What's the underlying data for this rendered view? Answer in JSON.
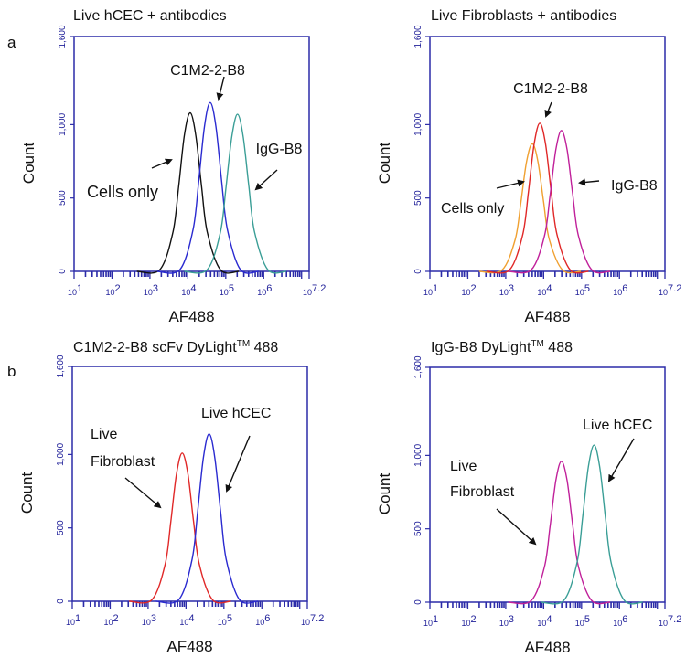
{
  "panel_letters": [
    "a",
    "b"
  ],
  "colors": {
    "axis": "#2b2ba8",
    "black": "#111111",
    "blue": "#2a2ad0",
    "teal": "#3a9e96",
    "orange": "#f0a030",
    "red": "#e02828",
    "magenta": "#c0209a"
  },
  "chart_data": [
    {
      "type": "line",
      "title": "Live hCEC + antibodies",
      "xlabel": "AF488",
      "ylabel": "Count",
      "xscale": "log",
      "xlim": [
        10,
        15848932
      ],
      "ylim": [
        0,
        1600
      ],
      "xticks": [
        {
          "base": "10",
          "exp": "1"
        },
        {
          "base": "10",
          "exp": "2"
        },
        {
          "base": "10",
          "exp": "3"
        },
        {
          "base": "10",
          "exp": "4"
        },
        {
          "base": "10",
          "exp": "5"
        },
        {
          "base": "10",
          "exp": "6"
        },
        {
          "base": "10",
          "exp": "7.2"
        }
      ],
      "yticks": [
        "0",
        "500",
        "1,000",
        "1,600"
      ],
      "grid": false,
      "annotations": [
        "C1M2-2-B8",
        "IgG-B8",
        "Cells only"
      ],
      "series": [
        {
          "name": "Cells only",
          "color": "#111111",
          "x": [
            1820,
            4070,
            5750,
            8130,
            11500,
            16200,
            22900,
            32400,
            72400
          ],
          "y": [
            11,
            270,
            583,
            929,
            1080,
            929,
            583,
            270,
            11
          ]
        },
        {
          "name": "C1M2-2-B8",
          "color": "#2a2ad0",
          "x": [
            6170,
            13800,
            19500,
            27500,
            38900,
            55000,
            77600,
            110000,
            245000
          ],
          "y": [
            12,
            288,
            621,
            989,
            1150,
            989,
            621,
            288,
            12
          ]
        },
        {
          "name": "IgG-B8",
          "color": "#3a9e96",
          "x": [
            32400,
            72400,
            102000,
            145000,
            204000,
            288000,
            407000,
            575000,
            1290000
          ],
          "y": [
            11,
            268,
            578,
            920,
            1070,
            920,
            578,
            268,
            11
          ]
        }
      ]
    },
    {
      "type": "line",
      "title": "Live Fibroblasts + antibodies",
      "xlabel": "AF488",
      "ylabel": "Count",
      "xscale": "log",
      "xlim": [
        10,
        15848932
      ],
      "ylim": [
        0,
        1600
      ],
      "xticks": [
        {
          "base": "10",
          "exp": "1"
        },
        {
          "base": "10",
          "exp": "2"
        },
        {
          "base": "10",
          "exp": "3"
        },
        {
          "base": "10",
          "exp": "4"
        },
        {
          "base": "10",
          "exp": "5"
        },
        {
          "base": "10",
          "exp": "6"
        },
        {
          "base": "10",
          "exp": "7.2"
        }
      ],
      "yticks": [
        "0",
        "500",
        "1,000",
        "1,600"
      ],
      "grid": false,
      "annotations": [
        "C1M2-2-B8",
        "IgG-B8",
        "Cells only"
      ],
      "series": [
        {
          "name": "Cells only",
          "color": "#f0a030",
          "x": [
            794,
            1780,
            2510,
            3550,
            5010,
            7080,
            10000,
            14100,
            31600
          ],
          "y": [
            9,
            218,
            470,
            748,
            870,
            748,
            470,
            218,
            9
          ]
        },
        {
          "name": "C1M2-2-B8",
          "color": "#e02828",
          "x": [
            1260,
            2820,
            3980,
            5620,
            7940,
            11200,
            15800,
            22400,
            50100
          ],
          "y": [
            10,
            253,
            545,
            869,
            1010,
            869,
            545,
            253,
            10
          ]
        },
        {
          "name": "IgG-B8",
          "color": "#c0209a",
          "x": [
            4680,
            10500,
            14800,
            20900,
            29500,
            41700,
            58900,
            83200,
            186000
          ],
          "y": [
            10,
            240,
            518,
            826,
            960,
            826,
            518,
            240,
            10
          ]
        }
      ]
    },
    {
      "type": "line",
      "title": "C1M2-2-B8 scFv DyLight",
      "title_sup": "TM",
      "title_suffix": " 488",
      "xlabel": "AF488",
      "ylabel": "Count",
      "xscale": "log",
      "xlim": [
        10,
        15848932
      ],
      "ylim": [
        0,
        1600
      ],
      "xticks": [
        {
          "base": "10",
          "exp": "1"
        },
        {
          "base": "10",
          "exp": "2"
        },
        {
          "base": "10",
          "exp": "3"
        },
        {
          "base": "10",
          "exp": "4"
        },
        {
          "base": "10",
          "exp": "5"
        },
        {
          "base": "10",
          "exp": "6"
        },
        {
          "base": "10",
          "exp": "7.2"
        }
      ],
      "yticks": [
        "0",
        "500",
        "1,000",
        "1,600"
      ],
      "grid": false,
      "annotations": [
        "Live hCEC",
        "Live",
        "Fibroblast"
      ],
      "series": [
        {
          "name": "Live Fibroblast",
          "color": "#e02828",
          "x": [
            1260,
            2820,
            3980,
            5620,
            7940,
            11200,
            15800,
            22400,
            50100
          ],
          "y": [
            10,
            253,
            545,
            869,
            1010,
            869,
            545,
            253,
            10
          ]
        },
        {
          "name": "Live hCEC",
          "color": "#2a2ad0",
          "x": [
            6460,
            14500,
            20400,
            28800,
            40700,
            57500,
            81300,
            115000,
            257000
          ],
          "y": [
            11,
            285,
            616,
            980,
            1140,
            980,
            616,
            285,
            11
          ]
        }
      ]
    },
    {
      "type": "line",
      "title": "IgG-B8 DyLight",
      "title_sup": "TM",
      "title_suffix": " 488",
      "xlabel": "AF488",
      "ylabel": "Count",
      "xscale": "log",
      "xlim": [
        10,
        15848932
      ],
      "ylim": [
        0,
        1600
      ],
      "xticks": [
        {
          "base": "10",
          "exp": "1"
        },
        {
          "base": "10",
          "exp": "2"
        },
        {
          "base": "10",
          "exp": "3"
        },
        {
          "base": "10",
          "exp": "4"
        },
        {
          "base": "10",
          "exp": "5"
        },
        {
          "base": "10",
          "exp": "6"
        },
        {
          "base": "10",
          "exp": "7.2"
        }
      ],
      "yticks": [
        "0",
        "500",
        "1,000",
        "1,600"
      ],
      "grid": false,
      "annotations": [
        "Live hCEC",
        "Live",
        "Fibroblast"
      ],
      "series": [
        {
          "name": "Live Fibroblast",
          "color": "#c0209a",
          "x": [
            4680,
            10500,
            14800,
            20900,
            29500,
            41700,
            58900,
            83200,
            186000
          ],
          "y": [
            10,
            240,
            518,
            826,
            960,
            826,
            518,
            240,
            10
          ]
        },
        {
          "name": "Live hCEC",
          "color": "#3a9e96",
          "x": [
            33900,
            75900,
            107000,
            151000,
            214000,
            302000,
            427000,
            603000,
            1350000
          ],
          "y": [
            11,
            268,
            578,
            920,
            1070,
            920,
            578,
            268,
            11
          ]
        }
      ]
    }
  ]
}
